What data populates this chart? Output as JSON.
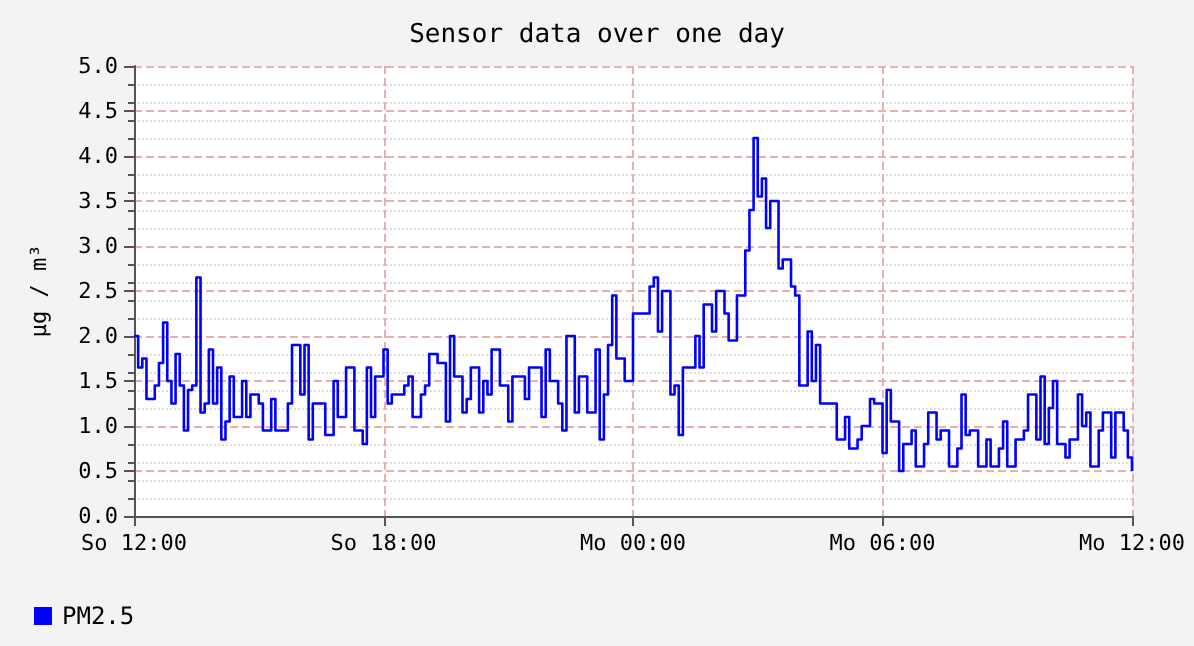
{
  "chart_data": {
    "type": "step",
    "title": "Sensor data over one day",
    "ylabel": "µg / m³",
    "categories": [
      "So 12:00",
      null,
      null,
      null,
      null,
      null,
      null,
      null,
      null,
      null,
      null,
      null,
      null,
      null,
      null,
      null,
      null,
      null,
      null,
      null,
      null,
      null,
      null,
      null,
      null,
      null,
      null,
      null,
      null,
      null,
      null,
      null,
      null,
      null,
      null,
      null,
      null,
      null,
      null,
      null,
      null,
      null,
      null,
      null,
      null,
      null,
      null,
      null,
      null,
      null,
      null,
      null,
      null,
      null,
      null,
      null,
      null,
      null,
      null,
      null,
      "So 18:00",
      null,
      null,
      null,
      null,
      null,
      null,
      null,
      null,
      null,
      null,
      null,
      null,
      null,
      null,
      null,
      null,
      null,
      null,
      null,
      null,
      null,
      null,
      null,
      null,
      null,
      null,
      null,
      null,
      null,
      null,
      null,
      null,
      null,
      null,
      null,
      null,
      null,
      null,
      null,
      null,
      null,
      null,
      null,
      null,
      null,
      null,
      null,
      null,
      null,
      null,
      null,
      null,
      null,
      null,
      null,
      null,
      null,
      null,
      null,
      "Mo 00:00",
      null,
      null,
      null,
      null,
      null,
      null,
      null,
      null,
      null,
      null,
      null,
      null,
      null,
      null,
      null,
      null,
      null,
      null,
      null,
      null,
      null,
      null,
      null,
      null,
      null,
      null,
      null,
      null,
      null,
      null,
      null,
      null,
      null,
      null,
      null,
      null,
      null,
      null,
      null,
      null,
      null,
      null,
      null,
      null,
      null,
      null,
      null,
      null,
      null,
      null,
      null,
      null,
      null,
      null,
      null,
      null,
      null,
      null,
      null,
      "Mo 06:00",
      null,
      null,
      null,
      null,
      null,
      null,
      null,
      null,
      null,
      null,
      null,
      null,
      null,
      null,
      null,
      null,
      null,
      null,
      null,
      null,
      null,
      null,
      null,
      null,
      null,
      null,
      null,
      null,
      null,
      null,
      null,
      null,
      null,
      null,
      null,
      null,
      null,
      null,
      null,
      null,
      null,
      null,
      null,
      null,
      null,
      null,
      null,
      null,
      null,
      null,
      null,
      null,
      null,
      null,
      null,
      null,
      null,
      null,
      null,
      "Mo 12:00"
    ],
    "ylim": [
      0,
      5
    ],
    "yticks": [
      {
        "value": 0,
        "label": "0.0"
      },
      {
        "value": 0.5,
        "label": "0.5"
      },
      {
        "value": 1,
        "label": "1.0"
      },
      {
        "value": 1.5,
        "label": "1.5"
      },
      {
        "value": 2,
        "label": "2.0"
      },
      {
        "value": 2.5,
        "label": "2.5"
      },
      {
        "value": 3,
        "label": "3.0"
      },
      {
        "value": 3.5,
        "label": "3.5"
      },
      {
        "value": 4,
        "label": "4.0"
      },
      {
        "value": 4.5,
        "label": "4.5"
      },
      {
        "value": 5,
        "label": "5.0"
      }
    ],
    "grid": true,
    "legend": "bottom left",
    "marker": "none",
    "line_style": "solid",
    "series": [
      {
        "name": "PM2.5",
        "color": "#0000ff",
        "values": [
          2.0,
          1.65,
          1.75,
          1.3,
          1.3,
          1.45,
          1.7,
          2.15,
          1.5,
          1.25,
          1.8,
          1.45,
          0.95,
          1.4,
          1.45,
          2.65,
          1.15,
          1.25,
          1.85,
          1.25,
          1.65,
          0.85,
          1.05,
          1.55,
          1.1,
          1.1,
          1.5,
          1.1,
          1.35,
          1.35,
          1.25,
          0.95,
          0.95,
          1.3,
          0.95,
          0.95,
          0.95,
          1.25,
          1.9,
          1.9,
          1.35,
          1.9,
          0.85,
          1.25,
          1.25,
          1.25,
          0.9,
          0.9,
          1.5,
          1.1,
          1.1,
          1.65,
          1.65,
          0.95,
          0.95,
          0.8,
          1.65,
          1.1,
          1.55,
          1.55,
          1.85,
          1.25,
          1.35,
          1.35,
          1.35,
          1.45,
          1.55,
          1.1,
          1.1,
          1.35,
          1.45,
          1.8,
          1.8,
          1.7,
          1.7,
          1.05,
          2.0,
          1.55,
          1.55,
          1.15,
          1.3,
          1.65,
          1.65,
          1.15,
          1.5,
          1.35,
          1.85,
          1.85,
          1.45,
          1.45,
          1.05,
          1.55,
          1.55,
          1.55,
          1.3,
          1.65,
          1.65,
          1.65,
          1.1,
          1.85,
          1.5,
          1.5,
          1.25,
          0.95,
          2.0,
          2.0,
          1.15,
          1.55,
          1.55,
          1.15,
          1.15,
          1.85,
          0.85,
          1.35,
          1.9,
          2.45,
          1.75,
          1.75,
          1.5,
          1.5,
          2.25,
          2.25,
          2.25,
          2.25,
          2.55,
          2.65,
          2.05,
          2.5,
          2.5,
          1.35,
          1.45,
          0.9,
          1.65,
          1.65,
          1.65,
          2.0,
          1.65,
          2.35,
          2.35,
          2.05,
          2.5,
          2.5,
          2.25,
          1.95,
          1.95,
          2.45,
          2.45,
          2.95,
          3.4,
          4.2,
          3.55,
          3.75,
          3.2,
          3.5,
          3.5,
          2.75,
          2.85,
          2.85,
          2.55,
          2.45,
          1.45,
          1.45,
          2.05,
          1.5,
          1.9,
          1.25,
          1.25,
          1.25,
          1.25,
          0.85,
          0.85,
          1.1,
          0.75,
          0.75,
          0.85,
          1.0,
          1.0,
          1.3,
          1.25,
          1.25,
          0.7,
          1.4,
          1.05,
          1.05,
          0.5,
          0.8,
          0.8,
          0.95,
          0.55,
          0.55,
          0.8,
          1.15,
          1.15,
          0.85,
          0.95,
          0.95,
          0.55,
          0.55,
          0.75,
          1.35,
          0.9,
          0.95,
          0.95,
          0.55,
          0.55,
          0.85,
          0.55,
          0.55,
          0.75,
          1.05,
          0.55,
          0.55,
          0.85,
          0.85,
          0.95,
          1.35,
          1.35,
          0.85,
          1.55,
          0.8,
          1.2,
          1.5,
          0.8,
          0.8,
          0.65,
          0.85,
          0.85,
          1.35,
          1.0,
          1.15,
          0.55,
          0.55,
          0.95,
          1.15,
          1.15,
          0.65,
          1.15,
          1.15,
          0.95,
          0.65,
          0.5
        ]
      }
    ]
  }
}
